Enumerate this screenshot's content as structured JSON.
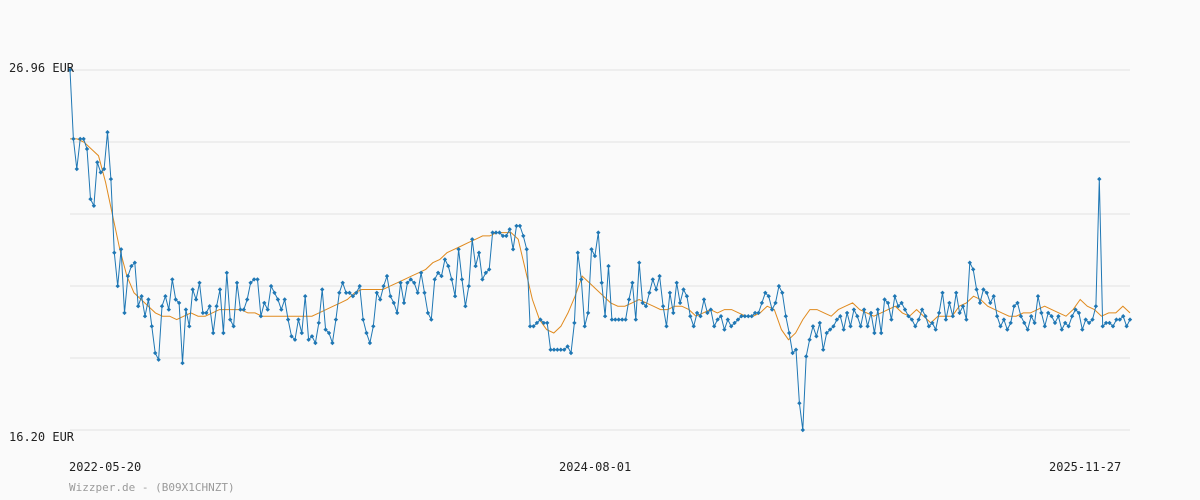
{
  "chart_data": {
    "type": "line",
    "currency_unit": "EUR",
    "y_labels": [
      "26.96 EUR",
      "16.20 EUR"
    ],
    "ylim": [
      16.2,
      26.96
    ],
    "x_labels": [
      "2022-05-20",
      "2024-08-01",
      "2025-11-27"
    ],
    "credit": "Wizzper.de - (B09X1CHNZT)",
    "grid": true,
    "colors": {
      "price": "#1f77b4",
      "average": "#e08a1e",
      "grid": "#e2e2e2"
    },
    "series": [
      {
        "values": [
          26.96,
          24.9,
          24.0,
          24.9,
          24.9,
          24.6,
          23.1,
          22.9,
          24.2,
          23.9,
          24.0,
          25.1,
          23.7,
          21.5,
          20.5,
          21.6,
          19.7,
          20.8,
          21.1,
          21.2,
          19.9,
          20.2,
          19.6,
          20.1,
          19.3,
          18.5,
          18.3,
          19.9,
          20.2,
          19.8,
          20.7,
          20.1,
          20.0,
          18.2,
          19.8,
          19.3,
          20.4,
          20.1,
          20.6,
          19.7,
          19.7,
          19.9,
          19.1,
          19.9,
          20.4,
          19.1,
          20.9,
          19.5,
          19.3,
          20.6,
          19.8,
          19.8,
          20.1,
          20.6,
          20.7,
          20.7,
          19.6,
          20.0,
          19.8,
          20.5,
          20.3,
          20.1,
          19.8,
          20.1,
          19.5,
          19.0,
          18.9,
          19.5,
          19.1,
          20.2,
          18.9,
          19.0,
          18.8,
          19.4,
          20.4,
          19.2,
          19.1,
          18.8,
          19.5,
          20.3,
          20.6,
          20.3,
          20.3,
          20.2,
          20.3,
          20.5,
          19.5,
          19.1,
          18.8,
          19.3,
          20.3,
          20.1,
          20.5,
          20.8,
          20.2,
          20.0,
          19.7,
          20.6,
          20.0,
          20.6,
          20.7,
          20.6,
          20.3,
          20.9,
          20.3,
          19.7,
          19.5,
          20.7,
          20.9,
          20.8,
          21.3,
          21.1,
          20.7,
          20.2,
          21.6,
          20.7,
          19.9,
          20.5,
          21.9,
          21.1,
          21.5,
          20.7,
          20.9,
          21.0,
          22.1,
          22.1,
          22.1,
          22.0,
          22.0,
          22.2,
          21.6,
          22.3,
          22.3,
          22.0,
          21.6,
          19.3,
          19.3,
          19.4,
          19.5,
          19.4,
          19.4,
          18.6,
          18.6,
          18.6,
          18.6,
          18.6,
          18.7,
          18.5,
          19.4,
          21.5,
          20.7,
          19.3,
          19.7,
          21.6,
          21.4,
          22.1,
          20.6,
          19.6,
          21.1,
          19.5,
          19.5,
          19.5,
          19.5,
          19.5,
          20.1,
          20.6,
          19.5,
          21.2,
          20.0,
          19.9,
          20.3,
          20.7,
          20.4,
          20.8,
          19.9,
          19.3,
          20.3,
          19.7,
          20.6,
          20.0,
          20.4,
          20.2,
          19.6,
          19.3,
          19.7,
          19.6,
          20.1,
          19.7,
          19.8,
          19.3,
          19.5,
          19.6,
          19.2,
          19.5,
          19.3,
          19.4,
          19.5,
          19.6,
          19.6,
          19.6,
          19.6,
          19.7,
          19.7,
          20.0,
          20.3,
          20.2,
          19.8,
          20.0,
          20.5,
          20.3,
          19.6,
          19.1,
          18.5,
          18.6,
          17.0,
          16.2,
          18.4,
          18.9,
          19.3,
          19.0,
          19.4,
          18.6,
          19.1,
          19.2,
          19.3,
          19.5,
          19.6,
          19.2,
          19.7,
          19.3,
          19.8,
          19.6,
          19.3,
          19.8,
          19.3,
          19.7,
          19.1,
          19.8,
          19.1,
          20.1,
          20.0,
          19.5,
          20.2,
          19.9,
          20.0,
          19.8,
          19.6,
          19.5,
          19.3,
          19.5,
          19.8,
          19.6,
          19.3,
          19.4,
          19.2,
          19.7,
          20.3,
          19.5,
          20.0,
          19.6,
          20.3,
          19.7,
          19.9,
          19.5,
          21.2,
          21.0,
          20.4,
          20.0,
          20.4,
          20.3,
          20.0,
          20.2,
          19.6,
          19.3,
          19.5,
          19.2,
          19.4,
          19.9,
          20.0,
          19.6,
          19.4,
          19.2,
          19.6,
          19.4,
          20.2,
          19.7,
          19.3,
          19.7,
          19.6,
          19.4,
          19.6,
          19.2,
          19.4,
          19.3,
          19.6,
          19.8,
          19.7,
          19.2,
          19.5,
          19.4,
          19.5,
          19.9,
          23.7,
          19.3,
          19.4,
          19.4,
          19.3,
          19.5,
          19.5,
          19.6,
          19.3,
          19.5
        ]
      },
      {
        "values": [
          24.9,
          24.9,
          24.8,
          24.6,
          24.4,
          23.6,
          22.6,
          21.6,
          20.8,
          20.3,
          20.1,
          19.9,
          19.7,
          19.6,
          19.6,
          19.5,
          19.6,
          19.7,
          19.6,
          19.6,
          19.7,
          19.8,
          19.8,
          19.8,
          19.8,
          19.7,
          19.7,
          19.6,
          19.6,
          19.6,
          19.6,
          19.6,
          19.6,
          19.6,
          19.6,
          19.7,
          19.8,
          19.9,
          20.0,
          20.1,
          20.3,
          20.4,
          20.4,
          20.4,
          20.4,
          20.5,
          20.6,
          20.7,
          20.8,
          20.9,
          21.0,
          21.2,
          21.3,
          21.5,
          21.6,
          21.7,
          21.8,
          21.9,
          22.0,
          22.0,
          22.1,
          22.1,
          22.1,
          21.9,
          21.0,
          20.1,
          19.5,
          19.2,
          19.1,
          19.3,
          19.7,
          20.2,
          20.8,
          20.6,
          20.4,
          20.2,
          20.0,
          19.9,
          19.9,
          20.0,
          20.1,
          20.0,
          19.9,
          19.8,
          19.8,
          19.9,
          19.9,
          19.8,
          19.6,
          19.7,
          19.8,
          19.7,
          19.8,
          19.8,
          19.7,
          19.6,
          19.6,
          19.7,
          19.9,
          19.8,
          19.2,
          18.9,
          19.1,
          19.5,
          19.8,
          19.8,
          19.7,
          19.6,
          19.8,
          19.9,
          20.0,
          19.8,
          19.7,
          19.6,
          19.7,
          19.8,
          19.9,
          19.7,
          19.6,
          19.8,
          19.6,
          19.4,
          19.6,
          19.6,
          19.6,
          19.9,
          20.0,
          20.2,
          20.1,
          19.9,
          19.8,
          19.7,
          19.6,
          19.6,
          19.7,
          19.7,
          19.8,
          19.9,
          19.8,
          19.7,
          19.6,
          19.8,
          20.1,
          19.9,
          19.8,
          19.6,
          19.7,
          19.7,
          19.9,
          19.7
        ]
      }
    ]
  }
}
